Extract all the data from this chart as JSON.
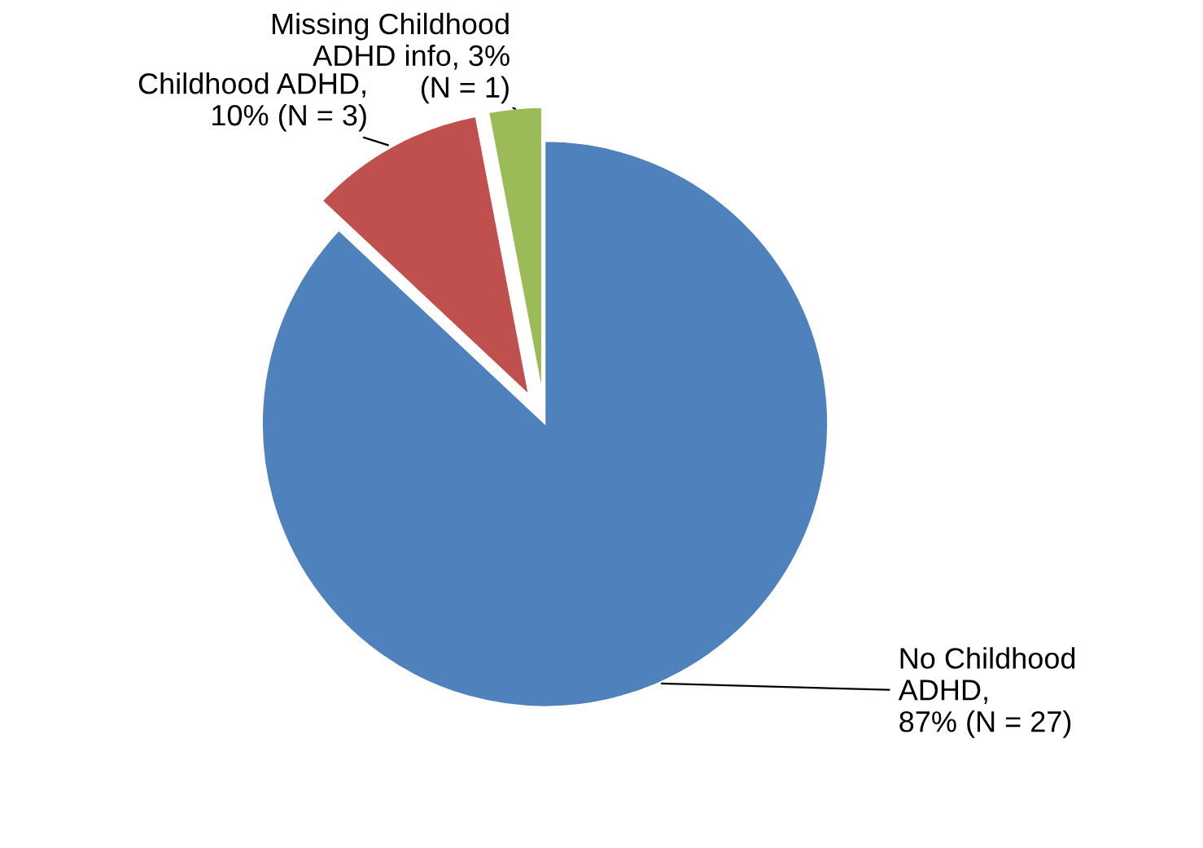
{
  "chart_data": {
    "type": "pie",
    "categories": [
      "No Childhood\nADHD,\n87% (N = 27)",
      "Childhood ADHD,\n10% (N = 3)",
      "Missing Childhood\nADHD info, 3%\n(N = 1)"
    ],
    "values": [
      87,
      10,
      3
    ],
    "colors": [
      "#4f81bd",
      "#c0504d",
      "#9bbb59"
    ]
  }
}
